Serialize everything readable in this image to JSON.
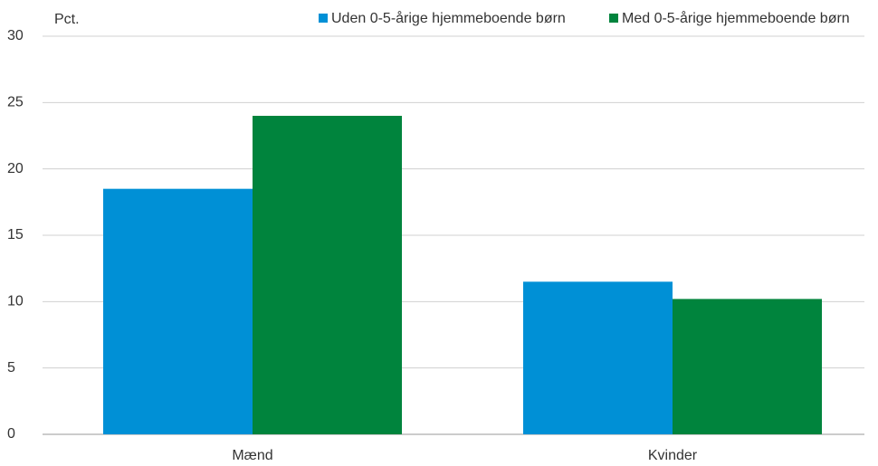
{
  "chart_data": {
    "type": "bar",
    "y_axis_label": "Pct.",
    "categories": [
      "Mænd",
      "Kvinder"
    ],
    "series": [
      {
        "name": "Uden 0-5-årige hjemmeboende børn",
        "color": "#0090d6",
        "values": [
          18.5,
          11.5
        ]
      },
      {
        "name": "Med 0-5-årige hjemmeboende børn",
        "color": "#00843d",
        "values": [
          24.0,
          10.2
        ]
      }
    ],
    "ylim": [
      0,
      30
    ],
    "yticks": [
      0,
      5,
      10,
      15,
      20,
      25,
      30
    ],
    "grid": true,
    "legend": "top-right"
  }
}
